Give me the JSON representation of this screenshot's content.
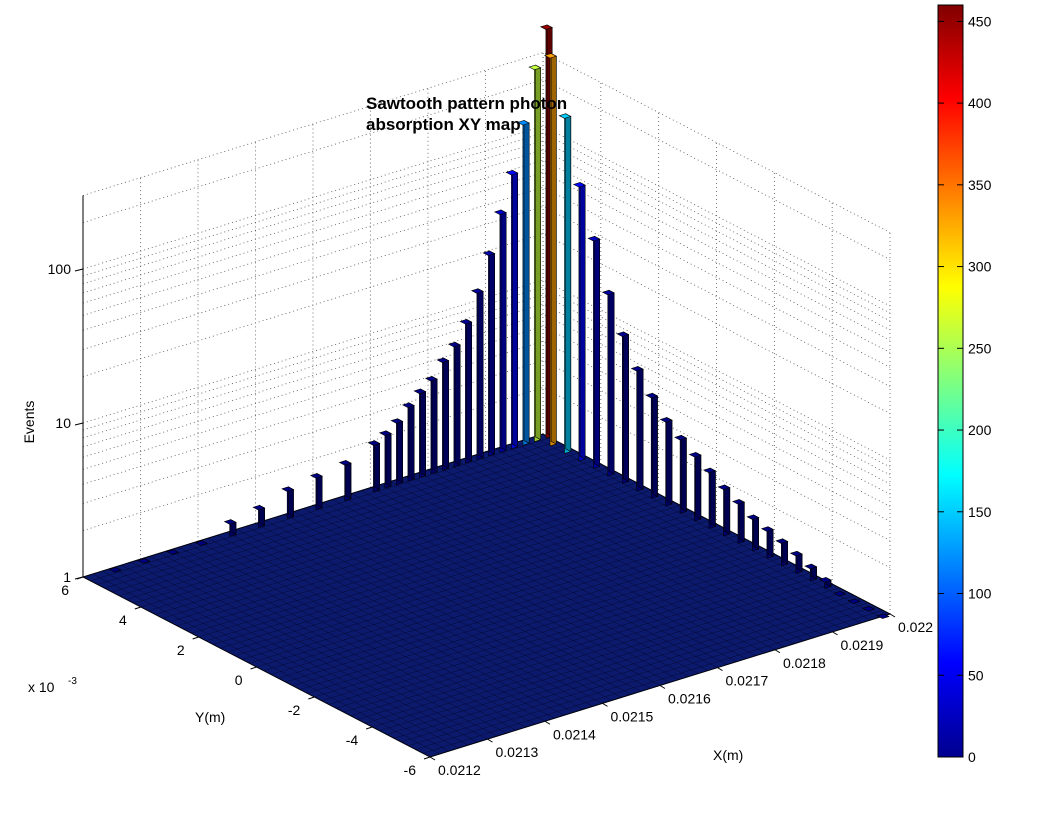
{
  "chart_data": {
    "type": "bar3d",
    "title_lines": [
      "Sawtooth pattern photon",
      "absorption XY map"
    ],
    "xlabel": "X(m)",
    "ylabel": "Y(m)",
    "zlabel": "Events",
    "y_exponent_label": "x 10",
    "y_exponent_power": "-3",
    "x_ticks": [
      "0.0212",
      "0.0213",
      "0.0214",
      "0.0215",
      "0.0216",
      "0.0217",
      "0.0218",
      "0.0219",
      "0.022"
    ],
    "y_ticks": [
      "-6",
      "-4",
      "-2",
      "0",
      "2",
      "4",
      "6"
    ],
    "z_ticks": [
      "1",
      "10",
      "100"
    ],
    "z_scale": "log",
    "xlim": [
      0.0212,
      0.022
    ],
    "ylim": [
      -0.006,
      0.006
    ],
    "zlim": [
      1,
      450
    ],
    "grid": true,
    "colorbar": {
      "position": "right",
      "colormap": "jet",
      "range": [
        0,
        460
      ],
      "ticks": [
        "0",
        "50",
        "100",
        "150",
        "200",
        "250",
        "300",
        "350",
        "400",
        "450"
      ]
    },
    "series": [
      {
        "ridge": "along-x (y ≈ 0.006)",
        "x": [
          0.02125,
          0.0213,
          0.02135,
          0.0214,
          0.02145,
          0.0215,
          0.02155,
          0.0216,
          0.02165,
          0.0217,
          0.02172,
          0.02174,
          0.02176,
          0.02178,
          0.0218,
          0.02182,
          0.02184,
          0.02186,
          0.02188,
          0.0219,
          0.02192,
          0.02194,
          0.02196,
          0.02198,
          0.022
        ],
        "values": [
          1,
          1,
          1,
          1,
          1.2,
          1.3,
          1.5,
          1.6,
          1.7,
          2,
          2.2,
          2.5,
          3,
          3.5,
          4,
          5,
          6,
          8,
          12,
          20,
          35,
          60,
          120,
          260,
          450
        ]
      },
      {
        "ridge": "along-y (x ≈ 0.022)",
        "y": [
          -0.006,
          -0.0055,
          -0.005,
          -0.0045,
          -0.004,
          -0.0035,
          -0.003,
          -0.0025,
          -0.002,
          -0.0015,
          -0.001,
          -0.0005,
          0.0,
          0.0005,
          0.001,
          0.0015,
          0.002,
          0.0025,
          0.003,
          0.0035,
          0.004,
          0.0045,
          0.005,
          0.0055
        ],
        "values": [
          1,
          1,
          1,
          1,
          1.1,
          1.2,
          1.3,
          1.4,
          1.5,
          1.6,
          1.8,
          2,
          2.3,
          2.6,
          3,
          3.5,
          4.5,
          6,
          9,
          15,
          30,
          60,
          150,
          330
        ]
      }
    ]
  }
}
